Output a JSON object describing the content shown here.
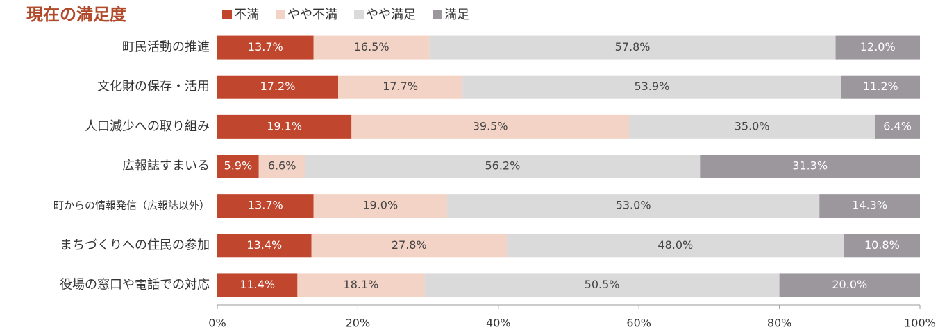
{
  "chart_data": {
    "type": "stacked_bar_horizontal",
    "title": "現在の満足度",
    "categories": [
      "町民活動の推進",
      "文化財の保存・活用",
      "人口減少への取り組み",
      "広報誌すまいる",
      "町からの情報発信（広報誌以外）",
      "まちづくりへの住民の参加",
      "役場の窓口や電話での対応"
    ],
    "series": [
      {
        "name": "不満",
        "color": "#c0462e",
        "values": [
          13.7,
          17.2,
          19.1,
          5.9,
          13.7,
          13.4,
          11.4
        ],
        "value_labels": [
          "13.7%",
          "17.2%",
          "19.1%",
          "5.9%",
          "13.7%",
          "13.4%",
          "11.4%"
        ]
      },
      {
        "name": "やや不満",
        "color": "#f3d3c5",
        "values": [
          16.5,
          17.7,
          39.5,
          6.6,
          19.0,
          27.8,
          18.1
        ],
        "value_labels": [
          "16.5%",
          "17.7%",
          "39.5%",
          "6.6%",
          "19.0%",
          "27.8%",
          "18.1%"
        ]
      },
      {
        "name": "やや満足",
        "color": "#dadada",
        "values": [
          57.8,
          53.9,
          35.0,
          56.2,
          53.0,
          48.0,
          50.5
        ],
        "value_labels": [
          "57.8%",
          "53.9%",
          "35.0%",
          "56.2%",
          "53.0%",
          "48.0%",
          "50.5%"
        ]
      },
      {
        "name": "満足",
        "color": "#9b979d",
        "values": [
          12.0,
          11.2,
          6.4,
          31.3,
          14.3,
          10.8,
          20.0
        ],
        "value_labels": [
          "12.0%",
          "11.2%",
          "6.4%",
          "31.3%",
          "14.3%",
          "10.8%",
          "20.0%"
        ]
      }
    ],
    "xlim": [
      0,
      100
    ],
    "xticks": [
      {
        "value": 0,
        "label": "0%"
      },
      {
        "value": 20,
        "label": "20%"
      },
      {
        "value": 40,
        "label": "40%"
      },
      {
        "value": 60,
        "label": "60%"
      },
      {
        "value": 80,
        "label": "80%"
      },
      {
        "value": 100,
        "label": "100%"
      }
    ]
  }
}
